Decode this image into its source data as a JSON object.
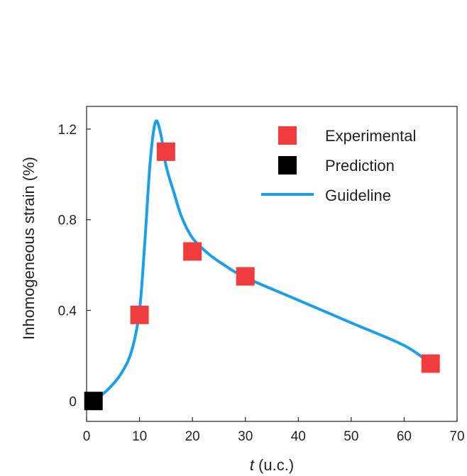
{
  "chart_data": {
    "type": "scatter",
    "xlabel_italic": "t",
    "xlabel_rest": " (u.c.)",
    "ylabel": "Inhomogeneous strain (%)",
    "xlim": [
      0,
      70
    ],
    "ylim": [
      -0.09,
      1.3
    ],
    "xticks": [
      0,
      10,
      20,
      30,
      40,
      50,
      60,
      70
    ],
    "xtick_labels": [
      "0",
      "10",
      "20",
      "30",
      "40",
      "50",
      "60",
      "70"
    ],
    "yticks": [
      0,
      0.4,
      0.8,
      1.2
    ],
    "ytick_labels": [
      "0",
      "0.4",
      "0.8",
      "1.2"
    ],
    "grid": false,
    "legend_position": "top-right",
    "series": [
      {
        "name": "Experimental",
        "kind": "square-marker",
        "color": "#f03c3c",
        "points": [
          {
            "x": 10,
            "y": 0.38
          },
          {
            "x": 15,
            "y": 1.1
          },
          {
            "x": 20,
            "y": 0.66
          },
          {
            "x": 30,
            "y": 0.55
          },
          {
            "x": 65,
            "y": 0.165
          }
        ]
      },
      {
        "name": "Prediction",
        "kind": "square-marker",
        "color": "#000000",
        "points": [
          {
            "x": 1.3,
            "y": 0.0
          }
        ]
      },
      {
        "name": "Guideline",
        "kind": "line",
        "color": "#1a9fe8",
        "points": [
          {
            "x": 1.3,
            "y": 0.0
          },
          {
            "x": 4,
            "y": 0.05
          },
          {
            "x": 6.5,
            "y": 0.12
          },
          {
            "x": 8.5,
            "y": 0.22
          },
          {
            "x": 10,
            "y": 0.4
          },
          {
            "x": 11,
            "y": 0.7
          },
          {
            "x": 12,
            "y": 1.05
          },
          {
            "x": 13,
            "y": 1.23
          },
          {
            "x": 14,
            "y": 1.18
          },
          {
            "x": 15,
            "y": 1.04
          },
          {
            "x": 16.5,
            "y": 0.92
          },
          {
            "x": 18,
            "y": 0.81
          },
          {
            "x": 20,
            "y": 0.72
          },
          {
            "x": 23,
            "y": 0.65
          },
          {
            "x": 26,
            "y": 0.6
          },
          {
            "x": 30,
            "y": 0.545
          },
          {
            "x": 40,
            "y": 0.445
          },
          {
            "x": 50,
            "y": 0.345
          },
          {
            "x": 60,
            "y": 0.245
          },
          {
            "x": 65,
            "y": 0.165
          }
        ]
      }
    ]
  }
}
